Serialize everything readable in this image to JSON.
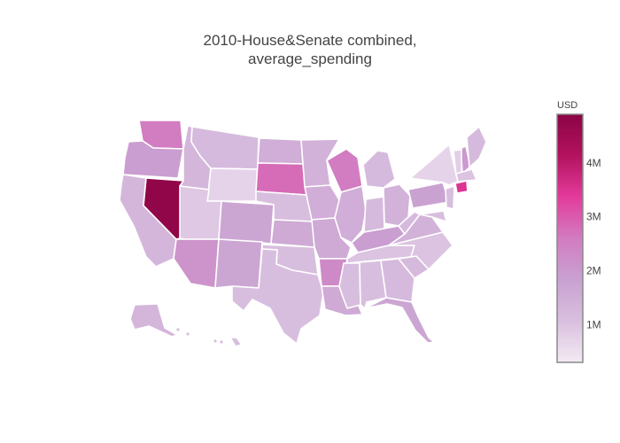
{
  "title": {
    "line1": "2010-House&Senate combined,",
    "line2": "average_spending"
  },
  "colorbar": {
    "unit": "USD",
    "ticks": [
      "1M",
      "2M",
      "3M",
      "4M"
    ],
    "tick_values": [
      1000000,
      2000000,
      3000000,
      4000000
    ],
    "range": [
      300000,
      4900000
    ],
    "colorscale": [
      "#f3eaf3",
      "#d9bfdf",
      "#c9a1d1",
      "#d27cc1",
      "#e33b9c",
      "#b3125f",
      "#8c0445"
    ]
  },
  "chart_data": {
    "type": "choropleth",
    "title": "2010-House&Senate combined, average_spending",
    "unit": "USD",
    "scope": "usa",
    "values_approx_usd": {
      "Nevada": 4800000,
      "Connecticut": 3500000,
      "South Dakota": 2800000,
      "Washington": 2600000,
      "Wisconsin": 2600000,
      "Arkansas": 2300000,
      "Arizona": 2100000,
      "New Hampshire": 2000000,
      "Oregon": 1900000,
      "Kentucky": 1900000,
      "Pennsylvania": 1800000,
      "Colorado": 1700000,
      "New Mexico": 1700000,
      "Kansas": 1600000,
      "Missouri": 1600000,
      "Florida": 1700000,
      "Louisiana": 1600000,
      "North Dakota": 1500000,
      "Minnesota": 1400000,
      "Iowa": 1500000,
      "Illinois": 1500000,
      "Ohio": 1400000,
      "Virginia": 1400000,
      "California": 1300000,
      "Idaho": 1300000,
      "Montana": 1200000,
      "Michigan": 1200000,
      "Maine": 1200000,
      "Alaska": 1300000,
      "Indiana": 1200000,
      "West Virginia": 1200000,
      "Nebraska": 1100000,
      "Oklahoma": 1100000,
      "Texas": 1100000,
      "Georgia": 1200000,
      "South Carolina": 1200000,
      "Alabama": 1100000,
      "Mississippi": 1100000,
      "North Carolina": 1000000,
      "Tennessee": 1000000,
      "Hawaii": 1100000,
      "Utah": 900000,
      "Wyoming": 700000,
      "New York": 700000,
      "Vermont": 800000,
      "Massachusetts": 1000000,
      "New Jersey": 1100000,
      "Maryland": 1100000
    }
  }
}
